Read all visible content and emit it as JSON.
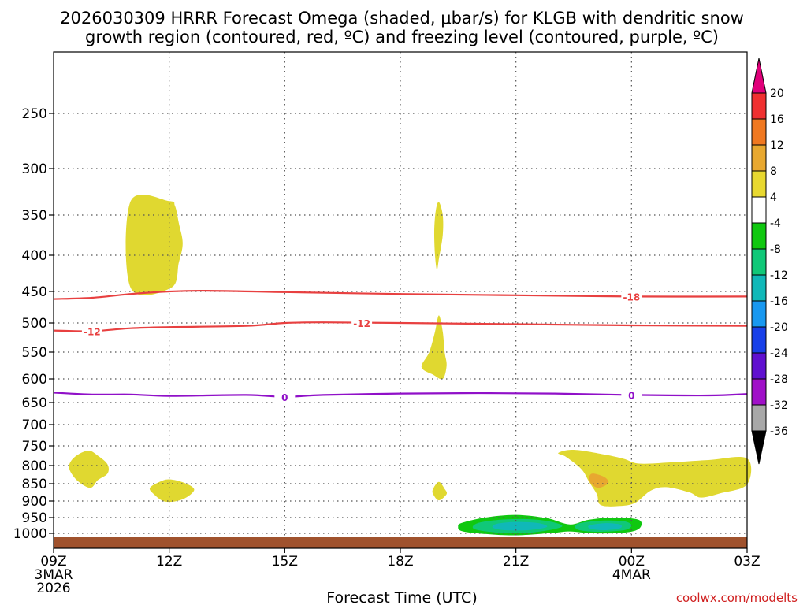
{
  "chart_data": {
    "type": "contour",
    "title_line1": "2026030309 HRRR Forecast Omega (shaded, μbar/s) for KLGB with dendritic snow",
    "title_line2": "growth region (contoured, red, ºC) and freezing level (contoured, purple, ºC)",
    "xlabel": "Forecast Time (UTC)",
    "credit": "coolwx.com/modelts",
    "x_ticks": [
      {
        "label": "09Z",
        "sub1": "3MAR",
        "sub2": "2026",
        "hour": 9
      },
      {
        "label": "12Z",
        "sub1": "",
        "sub2": "",
        "hour": 12
      },
      {
        "label": "15Z",
        "sub1": "",
        "sub2": "",
        "hour": 15
      },
      {
        "label": "18Z",
        "sub1": "",
        "sub2": "",
        "hour": 18
      },
      {
        "label": "21Z",
        "sub1": "",
        "sub2": "",
        "hour": 21
      },
      {
        "label": "00Z",
        "sub1": "4MAR",
        "sub2": "",
        "hour": 24
      },
      {
        "label": "03Z",
        "sub1": "",
        "sub2": "",
        "hour": 27
      }
    ],
    "y_ticks": [
      250,
      300,
      350,
      400,
      450,
      500,
      550,
      600,
      650,
      700,
      750,
      800,
      850,
      900,
      950,
      1000
    ],
    "ylim": [
      1030,
      200
    ],
    "xlim": [
      9,
      27
    ],
    "colorbar": {
      "labels": [
        "20",
        "16",
        "12",
        "8",
        "4",
        "-4",
        "-8",
        "-12",
        "-16",
        "-20",
        "-24",
        "-28",
        "-32",
        "-36"
      ],
      "top_color": "#e0007a",
      "bottom_color": "#000000",
      "colors": [
        "#f03030",
        "#f07820",
        "#e8a830",
        "#e8d830",
        "#ffffff",
        "#10c810",
        "#10c878",
        "#10b8b8",
        "#1898f0",
        "#1840e8",
        "#6010d0",
        "#a010c8",
        "#a8a8a8"
      ]
    },
    "contours": {
      "dgz_minus18": {
        "label": "-18",
        "color": "#e84040",
        "points": [
          [
            9,
            462
          ],
          [
            10,
            460
          ],
          [
            11,
            454
          ],
          [
            12,
            450
          ],
          [
            13,
            449
          ],
          [
            15,
            451
          ],
          [
            18,
            454
          ],
          [
            21,
            456
          ],
          [
            24,
            458
          ],
          [
            27,
            458
          ]
        ],
        "label_at": [
          24,
          458
        ]
      },
      "dgz_minus12": {
        "label": "-12",
        "color": "#e84040",
        "points": [
          [
            9,
            513
          ],
          [
            10,
            514
          ],
          [
            11,
            509
          ],
          [
            12,
            507
          ],
          [
            14,
            505
          ],
          [
            15,
            500
          ],
          [
            16,
            499
          ],
          [
            18,
            500
          ],
          [
            21,
            502
          ],
          [
            24,
            504
          ],
          [
            27,
            505
          ]
        ],
        "labels_at": [
          [
            10,
            514
          ],
          [
            17,
            500
          ]
        ]
      },
      "freezing": {
        "label": "0",
        "color": "#9010c8",
        "points": [
          [
            9,
            629
          ],
          [
            10,
            633
          ],
          [
            11,
            633
          ],
          [
            12,
            636
          ],
          [
            14,
            634
          ],
          [
            15,
            638
          ],
          [
            16,
            634
          ],
          [
            18,
            631
          ],
          [
            20,
            630
          ],
          [
            22,
            631
          ],
          [
            24,
            634
          ],
          [
            26,
            635
          ],
          [
            27,
            632
          ]
        ],
        "labels_at": [
          [
            15,
            638
          ],
          [
            24,
            634
          ]
        ]
      }
    },
    "shaded_regions": [
      {
        "name": "yellow-upper-left",
        "value_class": "4",
        "color": "#e0d830",
        "points": [
          [
            11.0,
            335
          ],
          [
            12.0,
            335
          ],
          [
            12.15,
            340
          ],
          [
            12.25,
            360
          ],
          [
            12.35,
            385
          ],
          [
            12.25,
            410
          ],
          [
            12.05,
            445
          ],
          [
            11.0,
            445
          ]
        ]
      },
      {
        "name": "yellow-upper-center",
        "value_class": "4",
        "color": "#e0d830",
        "points": [
          [
            19.0,
            336
          ],
          [
            19.1,
            350
          ],
          [
            19.1,
            375
          ],
          [
            19.0,
            405
          ],
          [
            18.95,
            420
          ],
          [
            18.9,
            400
          ],
          [
            18.88,
            370
          ],
          [
            18.92,
            345
          ]
        ]
      },
      {
        "name": "yellow-mid-center",
        "value_class": "4",
        "color": "#e0d830",
        "points": [
          [
            19.0,
            488
          ],
          [
            19.1,
            515
          ],
          [
            19.15,
            550
          ],
          [
            19.2,
            575
          ],
          [
            19.1,
            600
          ],
          [
            18.85,
            592
          ],
          [
            18.55,
            578
          ],
          [
            18.75,
            550
          ],
          [
            18.9,
            515
          ]
        ]
      },
      {
        "name": "yellow-low-left",
        "value_class": "4",
        "color": "#e0d830",
        "points": [
          [
            9.9,
            762
          ],
          [
            10.15,
            775
          ],
          [
            10.4,
            797
          ],
          [
            10.4,
            822
          ],
          [
            10.15,
            840
          ],
          [
            9.95,
            862
          ],
          [
            9.6,
            840
          ],
          [
            9.4,
            805
          ],
          [
            9.55,
            778
          ]
        ]
      },
      {
        "name": "yellow-low-12z",
        "value_class": "4",
        "color": "#e0d830",
        "points": [
          [
            12.0,
            838
          ],
          [
            12.4,
            848
          ],
          [
            12.65,
            868
          ],
          [
            12.35,
            895
          ],
          [
            11.9,
            902
          ],
          [
            11.6,
            880
          ],
          [
            11.5,
            862
          ],
          [
            11.75,
            845
          ]
        ]
      },
      {
        "name": "yellow-low-19z",
        "value_class": "4",
        "color": "#e0d830",
        "points": [
          [
            19.0,
            845
          ],
          [
            19.15,
            865
          ],
          [
            19.2,
            880
          ],
          [
            19.0,
            898
          ],
          [
            18.85,
            880
          ],
          [
            18.85,
            865
          ]
        ]
      },
      {
        "name": "yellow-low-right",
        "value_class": "4",
        "color": "#e0d830",
        "points": [
          [
            22.5,
            760
          ],
          [
            23.3,
            772
          ],
          [
            23.8,
            783
          ],
          [
            24.2,
            795
          ],
          [
            25.0,
            792
          ],
          [
            26.0,
            786
          ],
          [
            27.0,
            782
          ],
          [
            27.0,
            852
          ],
          [
            26.3,
            878
          ],
          [
            25.8,
            890
          ],
          [
            25.5,
            875
          ],
          [
            24.9,
            860
          ],
          [
            24.5,
            870
          ],
          [
            24.1,
            905
          ],
          [
            23.7,
            915
          ],
          [
            23.2,
            912
          ],
          [
            23.1,
            880
          ],
          [
            22.9,
            845
          ],
          [
            22.7,
            810
          ],
          [
            22.3,
            778
          ],
          [
            22.1,
            768
          ]
        ]
      },
      {
        "name": "orange-right",
        "value_class": "8",
        "color": "#e8a830",
        "points": [
          [
            23.0,
            822
          ],
          [
            23.3,
            832
          ],
          [
            23.4,
            848
          ],
          [
            23.15,
            862
          ],
          [
            22.95,
            850
          ],
          [
            22.9,
            832
          ]
        ]
      },
      {
        "name": "green-outer-1",
        "value_class": "-4",
        "color": "#10c810",
        "points": [
          [
            19.6,
            967
          ],
          [
            20.2,
            950
          ],
          [
            21.0,
            942
          ],
          [
            21.8,
            952
          ],
          [
            22.4,
            972
          ],
          [
            22.9,
            957
          ],
          [
            23.6,
            950
          ],
          [
            24.2,
            958
          ],
          [
            24.2,
            985
          ],
          [
            23.8,
            998
          ],
          [
            23.0,
            1000
          ],
          [
            22.4,
            994
          ],
          [
            22.0,
            998
          ],
          [
            21.0,
            1006
          ],
          [
            20.2,
            1002
          ],
          [
            19.6,
            993
          ],
          [
            19.5,
            978
          ]
        ]
      },
      {
        "name": "seagreen-1",
        "value_class": "-8",
        "color": "#10c878",
        "points": [
          [
            20.0,
            968
          ],
          [
            20.6,
            957
          ],
          [
            21.3,
            955
          ],
          [
            21.9,
            963
          ],
          [
            22.2,
            978
          ],
          [
            21.7,
            993
          ],
          [
            21.0,
            1000
          ],
          [
            20.3,
            995
          ],
          [
            19.9,
            985
          ]
        ]
      },
      {
        "name": "cyan-1",
        "value_class": "-12",
        "color": "#10b8b8",
        "points": [
          [
            20.5,
            970
          ],
          [
            21.0,
            964
          ],
          [
            21.6,
            968
          ],
          [
            21.8,
            980
          ],
          [
            21.3,
            990
          ],
          [
            20.7,
            990
          ],
          [
            20.4,
            982
          ]
        ]
      },
      {
        "name": "seagreen-2",
        "value_class": "-8",
        "color": "#10c878",
        "points": [
          [
            22.6,
            970
          ],
          [
            23.2,
            960
          ],
          [
            23.8,
            962
          ],
          [
            24.0,
            975
          ],
          [
            23.8,
            990
          ],
          [
            23.1,
            995
          ],
          [
            22.6,
            988
          ]
        ]
      },
      {
        "name": "cyan-2",
        "value_class": "-12",
        "color": "#10b8b8",
        "points": [
          [
            22.9,
            975
          ],
          [
            23.3,
            968
          ],
          [
            23.7,
            972
          ],
          [
            23.7,
            984
          ],
          [
            23.3,
            990
          ],
          [
            22.95,
            986
          ]
        ]
      }
    ],
    "ground": {
      "color": "#a0522d",
      "top_pressure": 1012
    },
    "grid": true
  }
}
